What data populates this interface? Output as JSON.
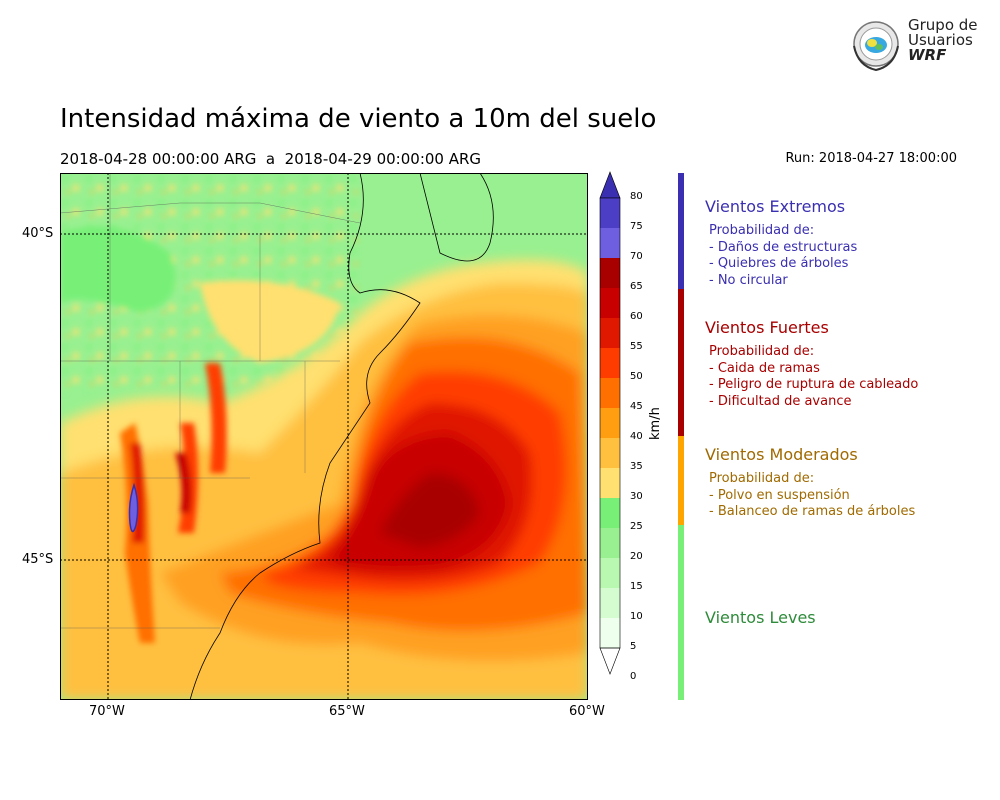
{
  "title": "Intensidad máxima de viento a 10m del suelo",
  "subtitle": "2018-04-28 00:00:00 ARG  a  2018-04-29 00:00:00 ARG",
  "run": "Run: 2018-04-27 18:00:00",
  "logo": {
    "line1": "Grupo de",
    "line2": "Usuarios",
    "line3": "WRF"
  },
  "axes": {
    "lat_labels": [
      "40°S",
      "45°S"
    ],
    "lon_labels": [
      "70°W",
      "65°W",
      "60°W"
    ]
  },
  "colorbar": {
    "unit": "km/h",
    "ticks": [
      "80",
      "75",
      "70",
      "65",
      "60",
      "55",
      "50",
      "45",
      "40",
      "35",
      "30",
      "25",
      "20",
      "15",
      "10",
      "5",
      "0"
    ],
    "colors": [
      "#4c3fc6",
      "#6e5fe0",
      "#a80000",
      "#c80000",
      "#e01800",
      "#ff3c00",
      "#ff7000",
      "#ff9e10",
      "#ffc040",
      "#ffe070",
      "#78f078",
      "#98f090",
      "#b8f8b0",
      "#d4fcd0",
      "#eeffee"
    ],
    "extend_top": "#3a2fb0",
    "extend_bottom": "#ffffff"
  },
  "categories": [
    {
      "title": "Vientos Extremos",
      "color": "#3a2fb0",
      "intro": "Probabilidad de:",
      "items": [
        "- Daños de estructuras",
        "- Quiebres de árboles",
        "- No circular"
      ]
    },
    {
      "title": "Vientos Fuertes",
      "color": "#a80000",
      "intro": "Probabilidad de:",
      "items": [
        "- Caida de ramas",
        "- Peligro de ruptura de cableado",
        "- Dificultad de avance"
      ]
    },
    {
      "title": "Vientos Moderados",
      "color": "#a06a00",
      "bar_color": "#ffa500",
      "intro": "Probabilidad de:",
      "items": [
        "- Polvo en suspensión",
        "- Balanceo de ramas de árboles"
      ]
    },
    {
      "title": "Vientos Leves",
      "color": "#2e8b3a",
      "bar_color": "#78f078",
      "intro": "",
      "items": []
    }
  ]
}
